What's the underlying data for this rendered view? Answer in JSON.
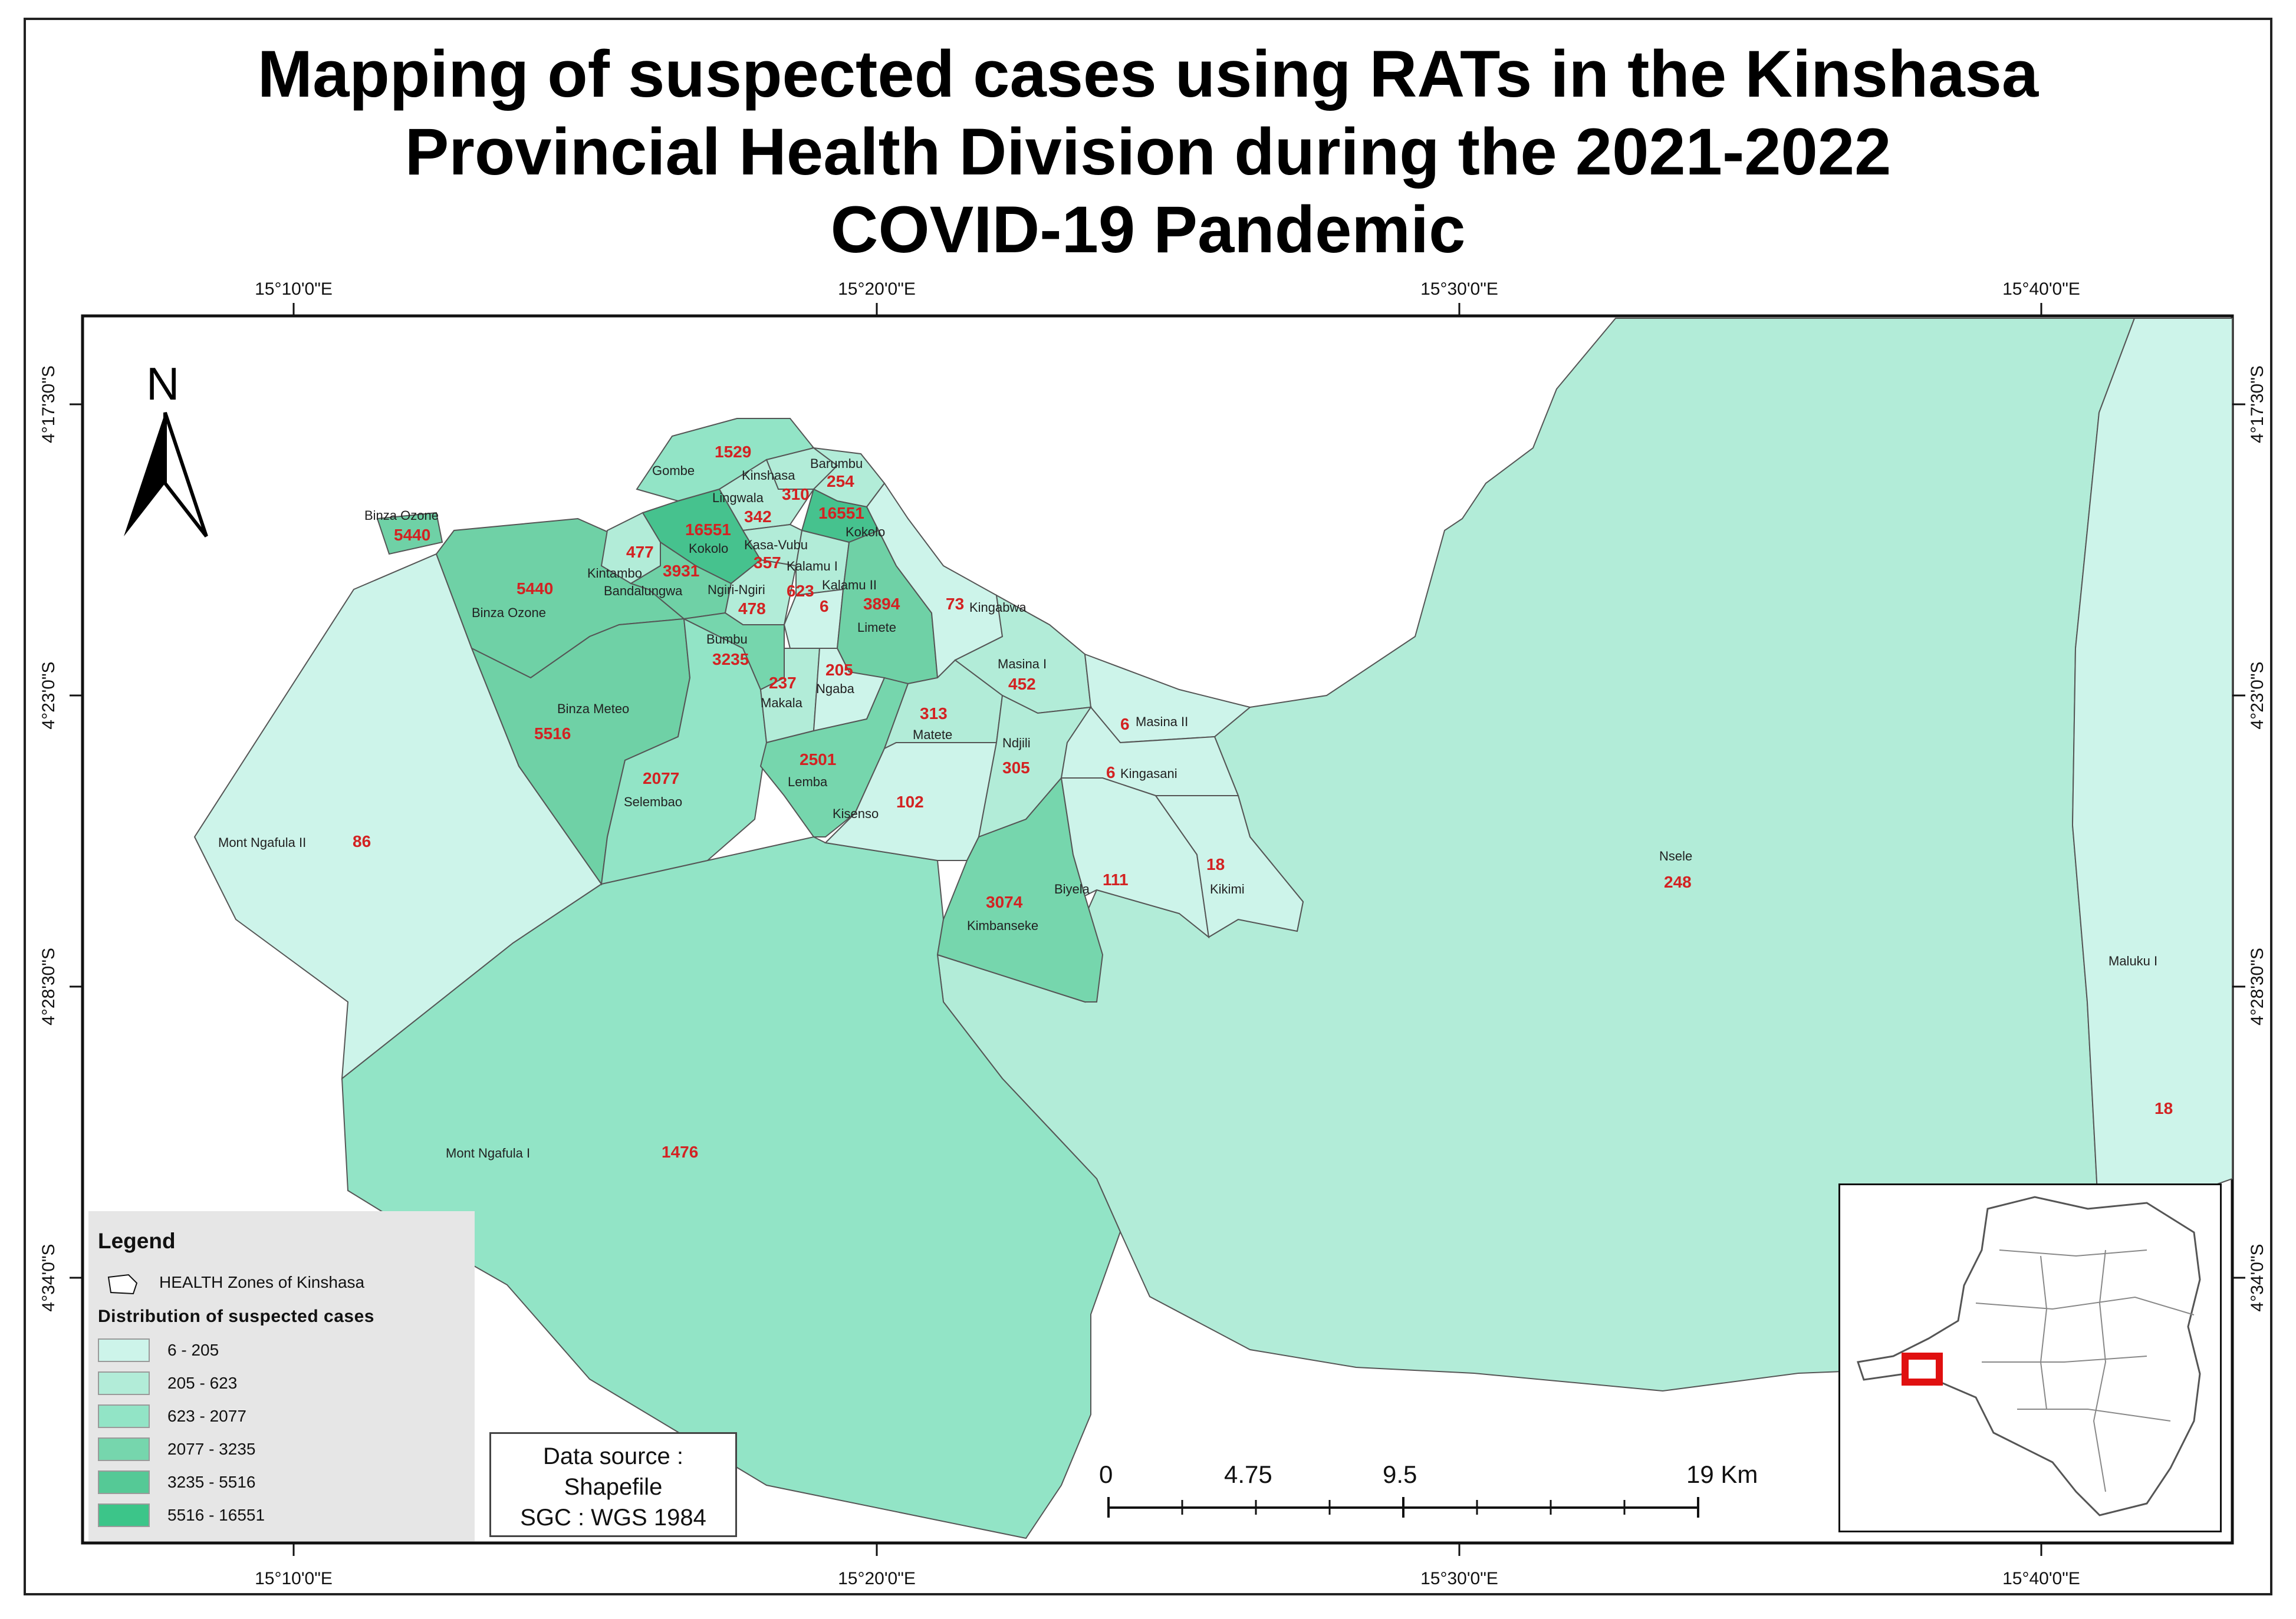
{
  "title": {
    "line1": "Mapping of suspected cases using RATs in the Kinshasa",
    "line2": "Provincial Health Division during the 2021-2022",
    "line3": "COVID-19 Pandemic"
  },
  "north_arrow": {
    "letter": "N",
    "icon": "north-arrow-icon"
  },
  "graticule": {
    "longitudes": [
      "15°10'0\"E",
      "15°20'0\"E",
      "15°30'0\"E",
      "15°40'0\"E"
    ],
    "latitudes": [
      "4°17'30\"S",
      "4°23'0\"S",
      "4°28'30\"S",
      "4°34'0\"S"
    ]
  },
  "zones": [
    {
      "name": "Binza Ozone",
      "value": "5440",
      "color": "#6fd1a6"
    },
    {
      "name": "Binza Ozone",
      "value": "5440",
      "color": "#6fd1a6"
    },
    {
      "name": "Binza Meteo",
      "value": "5516",
      "color": "#6fd1a6"
    },
    {
      "name": "Mont Ngafula II",
      "value": "86",
      "color": "#cdf4ea"
    },
    {
      "name": "Mont Ngafula I",
      "value": "1476",
      "color": "#92e4c6"
    },
    {
      "name": "Selembao",
      "value": "2077",
      "color": "#92e4c6"
    },
    {
      "name": "Gombe",
      "value": "1529",
      "color": "#92e4c6"
    },
    {
      "name": "Kinshasa",
      "value": "310",
      "color": "#b2ecd8"
    },
    {
      "name": "Barumbu",
      "value": "254",
      "color": "#b2ecd8"
    },
    {
      "name": "Lingwala",
      "value": "342",
      "color": "#b2ecd8"
    },
    {
      "name": "Kokolo",
      "value": "16551",
      "color": "#46c28e"
    },
    {
      "name": "Kokolo",
      "value": "16551",
      "color": "#46c28e"
    },
    {
      "name": "Kintambo",
      "value": "477",
      "color": "#b2ecd8"
    },
    {
      "name": "Bandalungwa",
      "value": "3931",
      "color": "#6fd1a6"
    },
    {
      "name": "Kasa-Vubu",
      "value": "357",
      "color": "#b2ecd8"
    },
    {
      "name": "Kalamu I",
      "value": "623",
      "color": "#b2ecd8"
    },
    {
      "name": "Kalamu II",
      "value": "6",
      "color": "#cdf4ea"
    },
    {
      "name": "Ngiri-Ngiri",
      "value": "478",
      "color": "#b2ecd8"
    },
    {
      "name": "Limete",
      "value": "3894",
      "color": "#6fd1a6"
    },
    {
      "name": "Kingabwa",
      "value": "73",
      "color": "#cdf4ea"
    },
    {
      "name": "Bumbu",
      "value": "3235",
      "color": "#76d6ad"
    },
    {
      "name": "Makala",
      "value": "237",
      "color": "#b2ecd8"
    },
    {
      "name": "Ngaba",
      "value": "205",
      "color": "#cdf4ea"
    },
    {
      "name": "Masina I",
      "value": "452",
      "color": "#b2ecd8"
    },
    {
      "name": "Masina II",
      "value": "6",
      "color": "#cdf4ea"
    },
    {
      "name": "Matete",
      "value": "313",
      "color": "#b2ecd8"
    },
    {
      "name": "Lemba",
      "value": "2501",
      "color": "#76d6ad"
    },
    {
      "name": "Ndjili",
      "value": "305",
      "color": "#b2ecd8"
    },
    {
      "name": "Kingasani",
      "value": "6",
      "color": "#cdf4ea"
    },
    {
      "name": "Kisenso",
      "value": "102",
      "color": "#cdf4ea"
    },
    {
      "name": "Kimbanseke",
      "value": "3074",
      "color": "#76d6ad"
    },
    {
      "name": "Biyela",
      "value": "111",
      "color": "#cdf4ea"
    },
    {
      "name": "Kikimi",
      "value": "18",
      "color": "#cdf4ea"
    },
    {
      "name": "Nsele",
      "value": "248",
      "color": "#b2ecd8"
    },
    {
      "name": "Maluku I",
      "value": "18",
      "color": "#cdf4ea"
    }
  ],
  "legend": {
    "heading": "Legend",
    "layer_label": "HEALTH Zones of Kinshasa",
    "subtitle": "Distribution of suspected cases",
    "classes": [
      {
        "range": "6 - 205",
        "color": "#cdf4ea"
      },
      {
        "range": "205 - 623",
        "color": "#b2ecd8"
      },
      {
        "range": "623 - 2077",
        "color": "#92e4c6"
      },
      {
        "range": "2077 - 3235",
        "color": "#76d6ad"
      },
      {
        "range": "3235 - 5516",
        "color": "#55c996"
      },
      {
        "range": "5516 - 16551",
        "color": "#3cc589"
      }
    ]
  },
  "source": {
    "line1": "Data source :",
    "line2": "Shapefile",
    "line3": "SGC : WGS 1984"
  },
  "scale_bar": {
    "ticks": [
      "0",
      "4.75",
      "9.5",
      "19 Km"
    ]
  },
  "inset": {
    "description_icon": "drc-locator-map-icon",
    "highlight_color": "#e01010"
  }
}
